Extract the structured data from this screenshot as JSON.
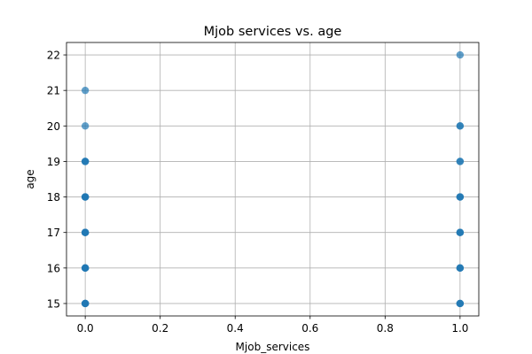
{
  "chart_data": {
    "type": "scatter",
    "title": "Mjob services vs. age",
    "xlabel": "Mjob_services",
    "ylabel": "age",
    "xlim": [
      -0.05,
      1.05
    ],
    "ylim": [
      14.65,
      22.35
    ],
    "xticks": [
      0.0,
      0.2,
      0.4,
      0.6,
      0.8,
      1.0
    ],
    "xtick_labels": [
      "0.0",
      "0.2",
      "0.4",
      "0.6",
      "0.8",
      "1.0"
    ],
    "yticks": [
      15,
      16,
      17,
      18,
      19,
      20,
      21,
      22
    ],
    "ytick_labels": [
      "15",
      "16",
      "17",
      "18",
      "19",
      "20",
      "21",
      "22"
    ],
    "grid": true,
    "legend": "none",
    "marker_color": "#1f77b4",
    "marker_alpha": 0.7,
    "series": [
      {
        "points": [
          {
            "x": 0,
            "y": 15
          },
          {
            "x": 0,
            "y": 15
          },
          {
            "x": 0,
            "y": 15
          },
          {
            "x": 0,
            "y": 15
          },
          {
            "x": 0,
            "y": 16
          },
          {
            "x": 0,
            "y": 16
          },
          {
            "x": 0,
            "y": 16
          },
          {
            "x": 0,
            "y": 16
          },
          {
            "x": 0,
            "y": 17
          },
          {
            "x": 0,
            "y": 17
          },
          {
            "x": 0,
            "y": 17
          },
          {
            "x": 0,
            "y": 17
          },
          {
            "x": 0,
            "y": 18
          },
          {
            "x": 0,
            "y": 18
          },
          {
            "x": 0,
            "y": 18
          },
          {
            "x": 0,
            "y": 18
          },
          {
            "x": 0,
            "y": 19
          },
          {
            "x": 0,
            "y": 19
          },
          {
            "x": 0,
            "y": 19
          },
          {
            "x": 0,
            "y": 20
          },
          {
            "x": 0,
            "y": 21
          },
          {
            "x": 1,
            "y": 15
          },
          {
            "x": 1,
            "y": 15
          },
          {
            "x": 1,
            "y": 15
          },
          {
            "x": 1,
            "y": 16
          },
          {
            "x": 1,
            "y": 16
          },
          {
            "x": 1,
            "y": 16
          },
          {
            "x": 1,
            "y": 17
          },
          {
            "x": 1,
            "y": 17
          },
          {
            "x": 1,
            "y": 17
          },
          {
            "x": 1,
            "y": 18
          },
          {
            "x": 1,
            "y": 18
          },
          {
            "x": 1,
            "y": 18
          },
          {
            "x": 1,
            "y": 19
          },
          {
            "x": 1,
            "y": 19
          },
          {
            "x": 1,
            "y": 20
          },
          {
            "x": 1,
            "y": 20
          },
          {
            "x": 1,
            "y": 22
          }
        ]
      }
    ]
  }
}
